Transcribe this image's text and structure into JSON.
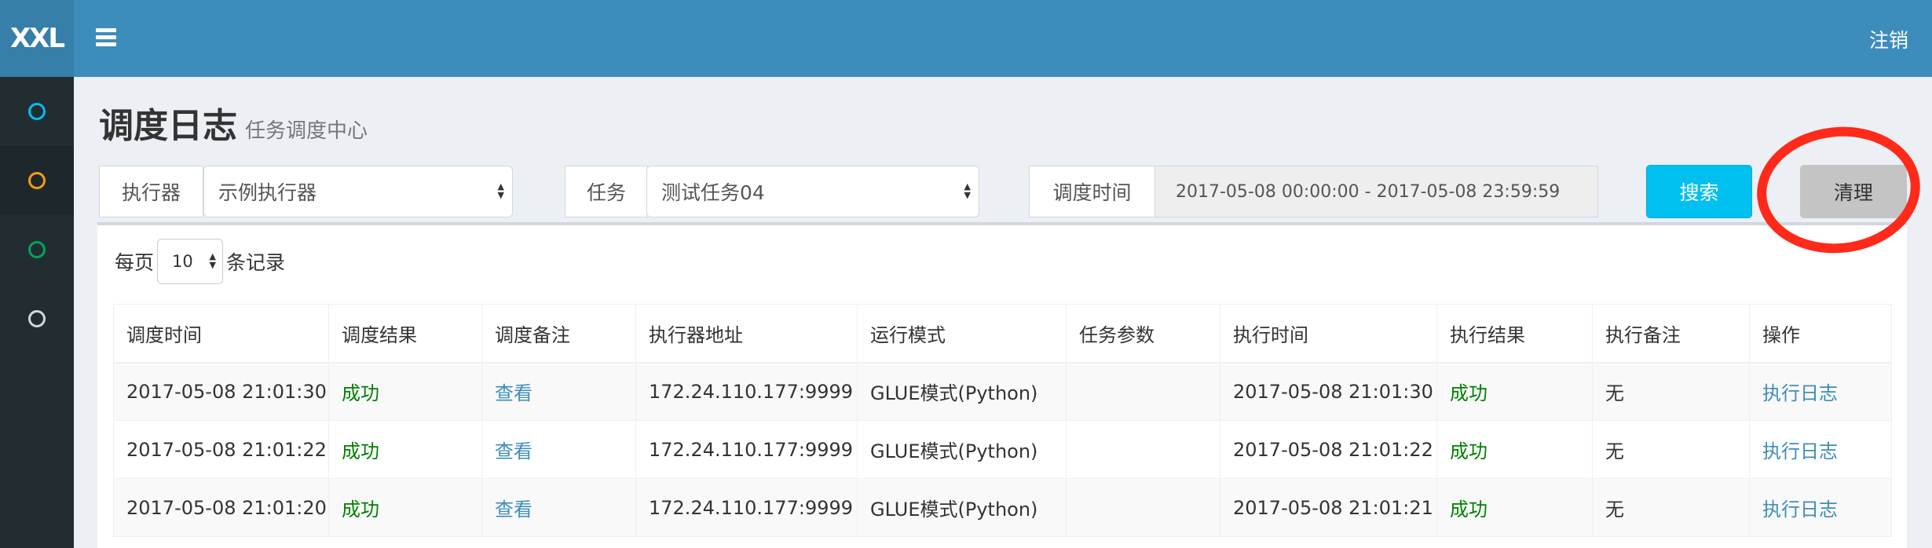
{
  "header": {
    "logo": "XXL",
    "logout": "注销"
  },
  "sidebar": {
    "items": [
      {
        "icon": "circle-icon",
        "color": "#00c0ef"
      },
      {
        "icon": "circle-icon",
        "color": "#f39c12",
        "active": true
      },
      {
        "icon": "circle-icon",
        "color": "#00a65a"
      },
      {
        "icon": "circle-icon",
        "color": "#d2d6de"
      }
    ]
  },
  "page": {
    "title": "调度日志",
    "subtitle": "任务调度中心"
  },
  "filters": {
    "executor_label": "执行器",
    "executor_value": "示例执行器",
    "job_label": "任务",
    "job_value": "测试任务04",
    "time_label": "调度时间",
    "time_value": "2017-05-08 00:00:00 - 2017-05-08 23:59:59",
    "search": "搜索",
    "clear": "清理"
  },
  "pagesize": {
    "prefix": "每页",
    "value": "10",
    "suffix": "条记录"
  },
  "table": {
    "columns": [
      "调度时间",
      "调度结果",
      "调度备注",
      "执行器地址",
      "运行模式",
      "任务参数",
      "执行时间",
      "执行结果",
      "执行备注",
      "操作"
    ],
    "rows": [
      [
        "2017-05-08 21:01:30",
        "成功",
        "查看",
        "172.24.110.177:9999",
        "GLUE模式(Python)",
        "",
        "2017-05-08 21:01:30",
        "成功",
        "无",
        "执行日志"
      ],
      [
        "2017-05-08 21:01:22",
        "成功",
        "查看",
        "172.24.110.177:9999",
        "GLUE模式(Python)",
        "",
        "2017-05-08 21:01:22",
        "成功",
        "无",
        "执行日志"
      ],
      [
        "2017-05-08 21:01:20",
        "成功",
        "查看",
        "172.24.110.177:9999",
        "GLUE模式(Python)",
        "",
        "2017-05-08 21:01:21",
        "成功",
        "无",
        "执行日志"
      ]
    ]
  },
  "colors": {
    "header": "#3c8dbc",
    "sidebar": "#222d32",
    "search_button": "#00c0ef",
    "success": "#008000",
    "link": "#3c8dbc",
    "annotation": "#ff2a1a"
  }
}
